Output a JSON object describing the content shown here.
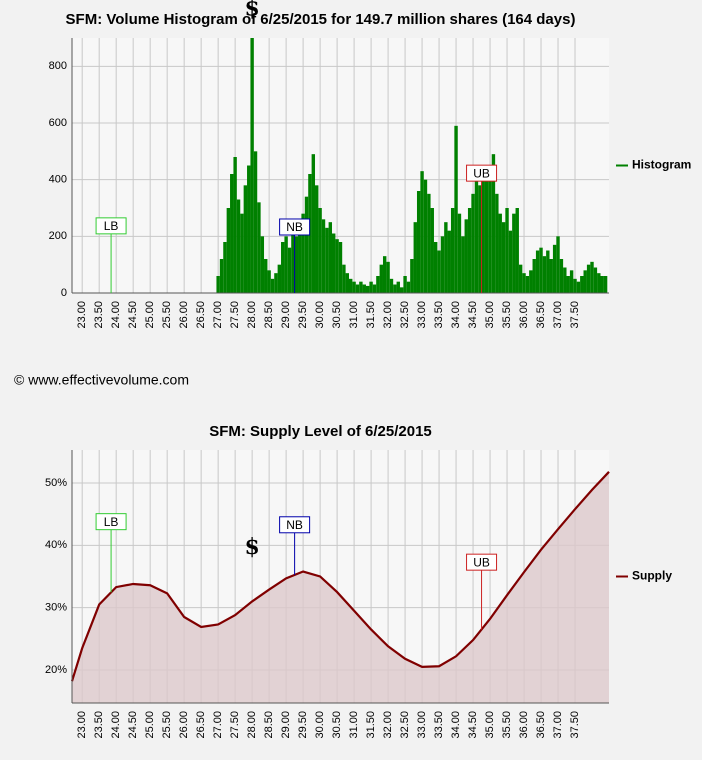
{
  "copyright": "© www.effectivevolume.com",
  "chart_data": [
    {
      "type": "bar",
      "title": "SFM: Volume Histogram of 6/25/2015 for 149.7 million shares (164 days)",
      "x": [
        27.0,
        27.1,
        27.2,
        27.3,
        27.4,
        27.5,
        27.6,
        27.7,
        27.8,
        27.9,
        28.0,
        28.1,
        28.2,
        28.3,
        28.4,
        28.5,
        28.6,
        28.7,
        28.8,
        28.9,
        29.0,
        29.1,
        29.2,
        29.3,
        29.4,
        29.5,
        29.6,
        29.7,
        29.8,
        29.9,
        30.0,
        30.1,
        30.2,
        30.3,
        30.4,
        30.5,
        30.6,
        30.7,
        30.8,
        30.9,
        31.0,
        31.1,
        31.2,
        31.3,
        31.4,
        31.5,
        31.6,
        31.7,
        31.8,
        31.9,
        32.0,
        32.1,
        32.2,
        32.3,
        32.4,
        32.5,
        32.6,
        32.7,
        32.8,
        32.9,
        33.0,
        33.1,
        33.2,
        33.3,
        33.4,
        33.5,
        33.6,
        33.7,
        33.8,
        33.9,
        34.0,
        34.1,
        34.2,
        34.3,
        34.4,
        34.5,
        34.6,
        34.7,
        34.8,
        34.9,
        35.0,
        35.1,
        35.2,
        35.3,
        35.4,
        35.5,
        35.6,
        35.7,
        35.8,
        35.9,
        36.0,
        36.1,
        36.2,
        36.3,
        36.4,
        36.5,
        36.6,
        36.7,
        36.8,
        36.9,
        37.0,
        37.1,
        37.2,
        37.3,
        37.4,
        37.5,
        37.6,
        37.7,
        37.8,
        37.9,
        38.0,
        38.1,
        38.2,
        38.3,
        38.4
      ],
      "series": [
        {
          "name": "Histogram",
          "color": "#008000",
          "values": [
            60,
            120,
            180,
            300,
            420,
            480,
            330,
            280,
            380,
            450,
            900,
            500,
            320,
            200,
            120,
            80,
            50,
            70,
            100,
            180,
            200,
            160,
            220,
            200,
            250,
            280,
            340,
            420,
            490,
            380,
            300,
            260,
            230,
            250,
            210,
            190,
            180,
            100,
            70,
            50,
            40,
            30,
            40,
            30,
            25,
            40,
            30,
            60,
            100,
            130,
            110,
            50,
            30,
            40,
            20,
            60,
            40,
            120,
            250,
            360,
            430,
            400,
            350,
            300,
            180,
            150,
            200,
            250,
            220,
            300,
            590,
            280,
            200,
            260,
            300,
            350,
            400,
            380,
            420,
            400,
            450,
            490,
            350,
            280,
            250,
            300,
            220,
            280,
            300,
            100,
            70,
            60,
            80,
            120,
            150,
            160,
            130,
            150,
            120,
            170,
            200,
            120,
            90,
            60,
            80,
            50,
            40,
            60,
            80,
            100,
            110,
            90,
            70,
            60,
            60
          ]
        }
      ],
      "xlim": [
        22.7,
        38.5
      ],
      "xticks": [
        {
          "value": 23,
          "label": "23.00"
        },
        {
          "value": 23.5,
          "label": "23.50"
        },
        {
          "value": 24,
          "label": "24.00"
        },
        {
          "value": 24.5,
          "label": "24.50"
        },
        {
          "value": 25,
          "label": "25.00"
        },
        {
          "value": 25.5,
          "label": "25.50"
        },
        {
          "value": 26,
          "label": "26.00"
        },
        {
          "value": 26.5,
          "label": "26.50"
        },
        {
          "value": 27,
          "label": "27.00"
        },
        {
          "value": 27.5,
          "label": "27.50"
        },
        {
          "value": 28,
          "label": "28.00"
        },
        {
          "value": 28.5,
          "label": "28.50"
        },
        {
          "value": 29,
          "label": "29.00"
        },
        {
          "value": 29.5,
          "label": "29.50"
        },
        {
          "value": 30,
          "label": "30.00"
        },
        {
          "value": 30.5,
          "label": "30.50"
        },
        {
          "value": 31,
          "label": "31.00"
        },
        {
          "value": 31.5,
          "label": "31.50"
        },
        {
          "value": 32,
          "label": "32.00"
        },
        {
          "value": 32.5,
          "label": "32.50"
        },
        {
          "value": 33,
          "label": "33.00"
        },
        {
          "value": 33.5,
          "label": "33.50"
        },
        {
          "value": 34,
          "label": "34.00"
        },
        {
          "value": 34.5,
          "label": "34.50"
        },
        {
          "value": 35,
          "label": "35.00"
        },
        {
          "value": 35.5,
          "label": "35.50"
        },
        {
          "value": 36,
          "label": "36.00"
        },
        {
          "value": 36.5,
          "label": "36.50"
        },
        {
          "value": 37,
          "label": "37.00"
        },
        {
          "value": 37.5,
          "label": "37.50"
        }
      ],
      "ylim": [
        0,
        900
      ],
      "yticks": [
        0,
        200,
        400,
        600,
        800
      ],
      "grid": true,
      "legend": "right",
      "annotations": [
        {
          "text": "LB",
          "x": 23.85,
          "y": 237,
          "color": "#33cc33"
        },
        {
          "text": "NB",
          "x": 29.25,
          "y": 233,
          "color": "#0000aa"
        },
        {
          "text": "UB",
          "x": 34.75,
          "y": 423,
          "color": "#cc2222"
        },
        {
          "text": "$",
          "x": 28.0,
          "y": 1000,
          "color": "#000000"
        }
      ]
    },
    {
      "type": "line",
      "title": "SFM: Supply Level of 6/25/2015",
      "x": [
        22.7,
        23.0,
        23.5,
        24.0,
        24.5,
        25.0,
        25.5,
        26.0,
        26.5,
        27.0,
        27.5,
        28.0,
        28.5,
        29.0,
        29.5,
        30.0,
        30.5,
        31.0,
        31.5,
        32.0,
        32.5,
        33.0,
        33.5,
        34.0,
        34.5,
        35.0,
        35.5,
        36.0,
        36.5,
        37.0,
        37.5,
        38.0,
        38.5
      ],
      "series": [
        {
          "name": "Supply",
          "color": "#800000",
          "fill": "#dcc8ca",
          "values": [
            18.2,
            23.5,
            30.5,
            33.3,
            33.8,
            33.6,
            32.3,
            28.5,
            26.9,
            27.3,
            28.8,
            31.0,
            32.9,
            34.7,
            35.8,
            35.0,
            32.5,
            29.5,
            26.5,
            23.8,
            21.8,
            20.5,
            20.6,
            22.2,
            24.8,
            28.2,
            32.0,
            35.7,
            39.3,
            42.6,
            45.8,
            48.9,
            51.8
          ]
        }
      ],
      "xlim": [
        22.7,
        38.5
      ],
      "xticks": [
        {
          "value": 23,
          "label": "23.00"
        },
        {
          "value": 23.5,
          "label": "23.50"
        },
        {
          "value": 24,
          "label": "24.00"
        },
        {
          "value": 24.5,
          "label": "24.50"
        },
        {
          "value": 25,
          "label": "25.00"
        },
        {
          "value": 25.5,
          "label": "25.50"
        },
        {
          "value": 26,
          "label": "26.00"
        },
        {
          "value": 26.5,
          "label": "26.50"
        },
        {
          "value": 27,
          "label": "27.00"
        },
        {
          "value": 27.5,
          "label": "27.50"
        },
        {
          "value": 28,
          "label": "28.00"
        },
        {
          "value": 28.5,
          "label": "28.50"
        },
        {
          "value": 29,
          "label": "29.00"
        },
        {
          "value": 29.5,
          "label": "29.50"
        },
        {
          "value": 30,
          "label": "30.00"
        },
        {
          "value": 30.5,
          "label": "30.50"
        },
        {
          "value": 31,
          "label": "31.00"
        },
        {
          "value": 31.5,
          "label": "31.50"
        },
        {
          "value": 32,
          "label": "32.00"
        },
        {
          "value": 32.5,
          "label": "32.50"
        },
        {
          "value": 33,
          "label": "33.00"
        },
        {
          "value": 33.5,
          "label": "33.50"
        },
        {
          "value": 34,
          "label": "34.00"
        },
        {
          "value": 34.5,
          "label": "34.50"
        },
        {
          "value": 35,
          "label": "35.00"
        },
        {
          "value": 35.5,
          "label": "35.50"
        },
        {
          "value": 36,
          "label": "36.00"
        },
        {
          "value": 36.5,
          "label": "36.50"
        },
        {
          "value": 37,
          "label": "37.00"
        },
        {
          "value": 37.5,
          "label": "37.50"
        }
      ],
      "ylim": [
        14.7,
        55.3
      ],
      "yticks": [
        {
          "value": 20,
          "label": "20%"
        },
        {
          "value": 30,
          "label": "30%"
        },
        {
          "value": 40,
          "label": "40%"
        },
        {
          "value": 50,
          "label": "50%"
        }
      ],
      "grid": true,
      "legend": "right",
      "annotations": [
        {
          "text": "LB",
          "x": 23.85,
          "y": 43.8,
          "color": "#33cc33"
        },
        {
          "text": "NB",
          "x": 29.25,
          "y": 43.3,
          "color": "#0000aa"
        },
        {
          "text": "UB",
          "x": 34.75,
          "y": 37.3,
          "color": "#cc2222"
        },
        {
          "text": "$",
          "x": 28.0,
          "y": 39.6,
          "color": "#000000"
        }
      ]
    }
  ]
}
